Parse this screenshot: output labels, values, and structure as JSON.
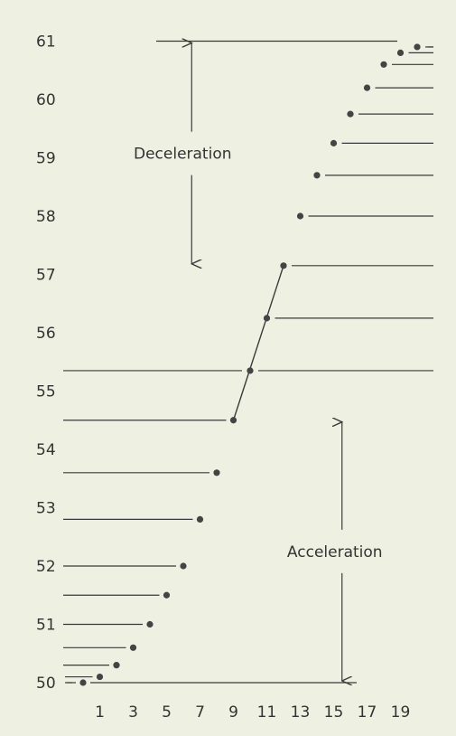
{
  "chart_data": {
    "type": "scatter",
    "title": "",
    "xlabel": "",
    "ylabel": "",
    "x_ticks": [
      1,
      3,
      5,
      7,
      9,
      11,
      13,
      15,
      17,
      19
    ],
    "y_ticks": [
      50,
      51,
      52,
      53,
      54,
      55,
      56,
      57,
      58,
      59,
      60,
      61
    ],
    "xlim": [
      0,
      20.5
    ],
    "ylim": [
      50,
      61
    ],
    "grid": false,
    "legend": "none",
    "colors": {
      "background": "#eef0e2",
      "ink": "#3a3a3a",
      "dots": "#444444"
    },
    "series": [
      {
        "points": [
          {
            "x": 0.0,
            "y": 50.0
          },
          {
            "x": 1.0,
            "y": 50.1
          },
          {
            "x": 2.0,
            "y": 50.3
          },
          {
            "x": 3.0,
            "y": 50.6
          },
          {
            "x": 4.0,
            "y": 51.0
          },
          {
            "x": 5.0,
            "y": 51.5
          },
          {
            "x": 6.0,
            "y": 52.0
          },
          {
            "x": 7.0,
            "y": 52.8
          },
          {
            "x": 8.0,
            "y": 53.6
          },
          {
            "x": 9.0,
            "y": 54.5
          },
          {
            "x": 10.0,
            "y": 55.35
          },
          {
            "x": 11.0,
            "y": 56.25
          },
          {
            "x": 12.0,
            "y": 57.15
          },
          {
            "x": 13.0,
            "y": 58.0
          },
          {
            "x": 14.0,
            "y": 58.7
          },
          {
            "x": 15.0,
            "y": 59.25
          },
          {
            "x": 16.0,
            "y": 59.75
          },
          {
            "x": 17.0,
            "y": 60.2
          },
          {
            "x": 18.0,
            "y": 60.6
          },
          {
            "x": 19.0,
            "y": 60.8
          },
          {
            "x": 20.0,
            "y": 60.9
          }
        ]
      }
    ],
    "annotations": [
      {
        "text": "Deceleration",
        "from_y": 61,
        "to_y": 57.15,
        "at_x": 6.5
      },
      {
        "text": "Acceleration",
        "from_y": 50,
        "to_y": 54.5,
        "at_x": 15.5
      }
    ]
  }
}
